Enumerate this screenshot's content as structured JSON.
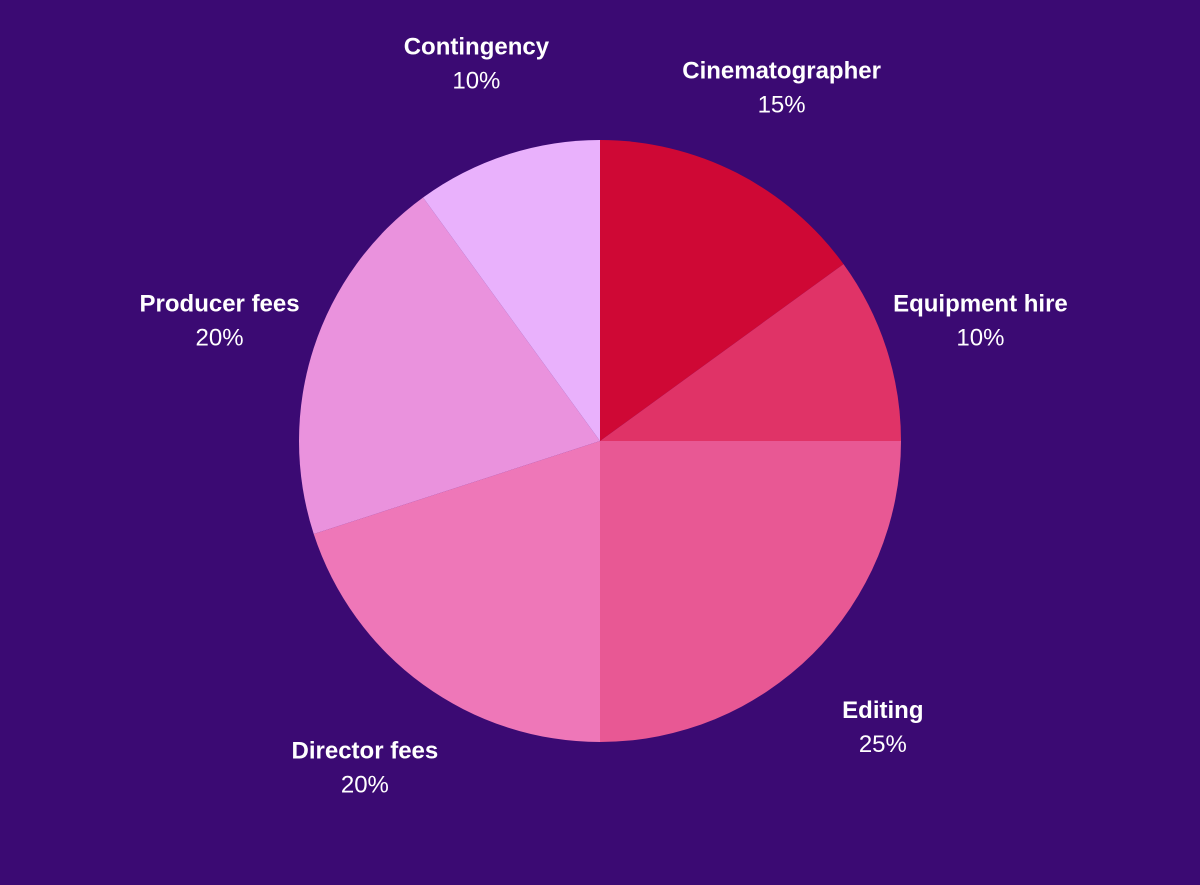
{
  "chart_data": {
    "type": "pie",
    "start": "12 o'clock",
    "direction": "clockwise",
    "background": "#3b0a73",
    "slices": [
      {
        "label": "Cinematographer",
        "value": 15,
        "display": "15%",
        "color": "#cf0835"
      },
      {
        "label": "Equipment hire",
        "value": 10,
        "display": "10%",
        "color": "#e03367"
      },
      {
        "label": "Editing",
        "value": 25,
        "display": "25%",
        "color": "#e85894"
      },
      {
        "label": "Director fees",
        "value": 20,
        "display": "20%",
        "color": "#ee77b8"
      },
      {
        "label": "Producer fees",
        "value": 20,
        "display": "20%",
        "color": "#ea92dd"
      },
      {
        "label": "Contingency",
        "value": 10,
        "display": "10%",
        "color": "#e9b1fc"
      }
    ]
  }
}
